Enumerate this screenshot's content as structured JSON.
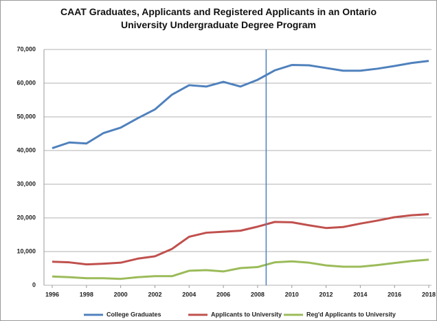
{
  "chart_data": {
    "type": "line",
    "title": "CAAT Graduates, Applicants and Registered Applicants in an Ontario University Undergraduate Degree Program",
    "x": [
      1996,
      1997,
      1998,
      1999,
      2000,
      2001,
      2002,
      2003,
      2004,
      2005,
      2006,
      2007,
      2008,
      2009,
      2010,
      2011,
      2012,
      2013,
      2014,
      2015,
      2016,
      2017,
      2018
    ],
    "series": [
      {
        "name": "College Graduates",
        "color": "#4f81bd",
        "values": [
          40700,
          42400,
          42100,
          45200,
          46800,
          49600,
          52200,
          56600,
          59400,
          59000,
          60400,
          59000,
          61000,
          63800,
          65400,
          65300,
          64500,
          63700,
          63700,
          64300,
          65100,
          66000,
          66600
        ]
      },
      {
        "name": "Applicants to University",
        "color": "#c0504d",
        "values": [
          7000,
          6800,
          6200,
          6400,
          6700,
          7900,
          8600,
          10800,
          14400,
          15600,
          15900,
          16200,
          17400,
          18800,
          18700,
          17800,
          17000,
          17300,
          18300,
          19200,
          20200,
          20800,
          21100
        ]
      },
      {
        "name": "Reg'd Applicants to University",
        "color": "#9bbb59",
        "values": [
          2600,
          2400,
          2100,
          2100,
          1900,
          2400,
          2700,
          2700,
          4300,
          4500,
          4100,
          5100,
          5400,
          6800,
          7100,
          6700,
          5900,
          5500,
          5500,
          6000,
          6600,
          7200,
          7600
        ]
      }
    ],
    "reference_line": 2008.5,
    "xlim": [
      1996,
      2018
    ],
    "xticks": [
      1996,
      1998,
      2000,
      2002,
      2004,
      2006,
      2008,
      2010,
      2012,
      2014,
      2016,
      2018
    ],
    "ylim": [
      0,
      70000
    ],
    "yticks": [
      0,
      {
        "value": 10000,
        "label": "10,000"
      },
      {
        "value": 20000,
        "label": "20,000"
      },
      {
        "value": 30000,
        "label": "30,000"
      },
      {
        "value": 40000,
        "label": "40,000"
      },
      {
        "value": 50000,
        "label": "50,000"
      },
      {
        "value": 60000,
        "label": "60,000"
      },
      {
        "value": 70000,
        "label": "70,000"
      }
    ],
    "grid": true,
    "legend": "bottom"
  }
}
